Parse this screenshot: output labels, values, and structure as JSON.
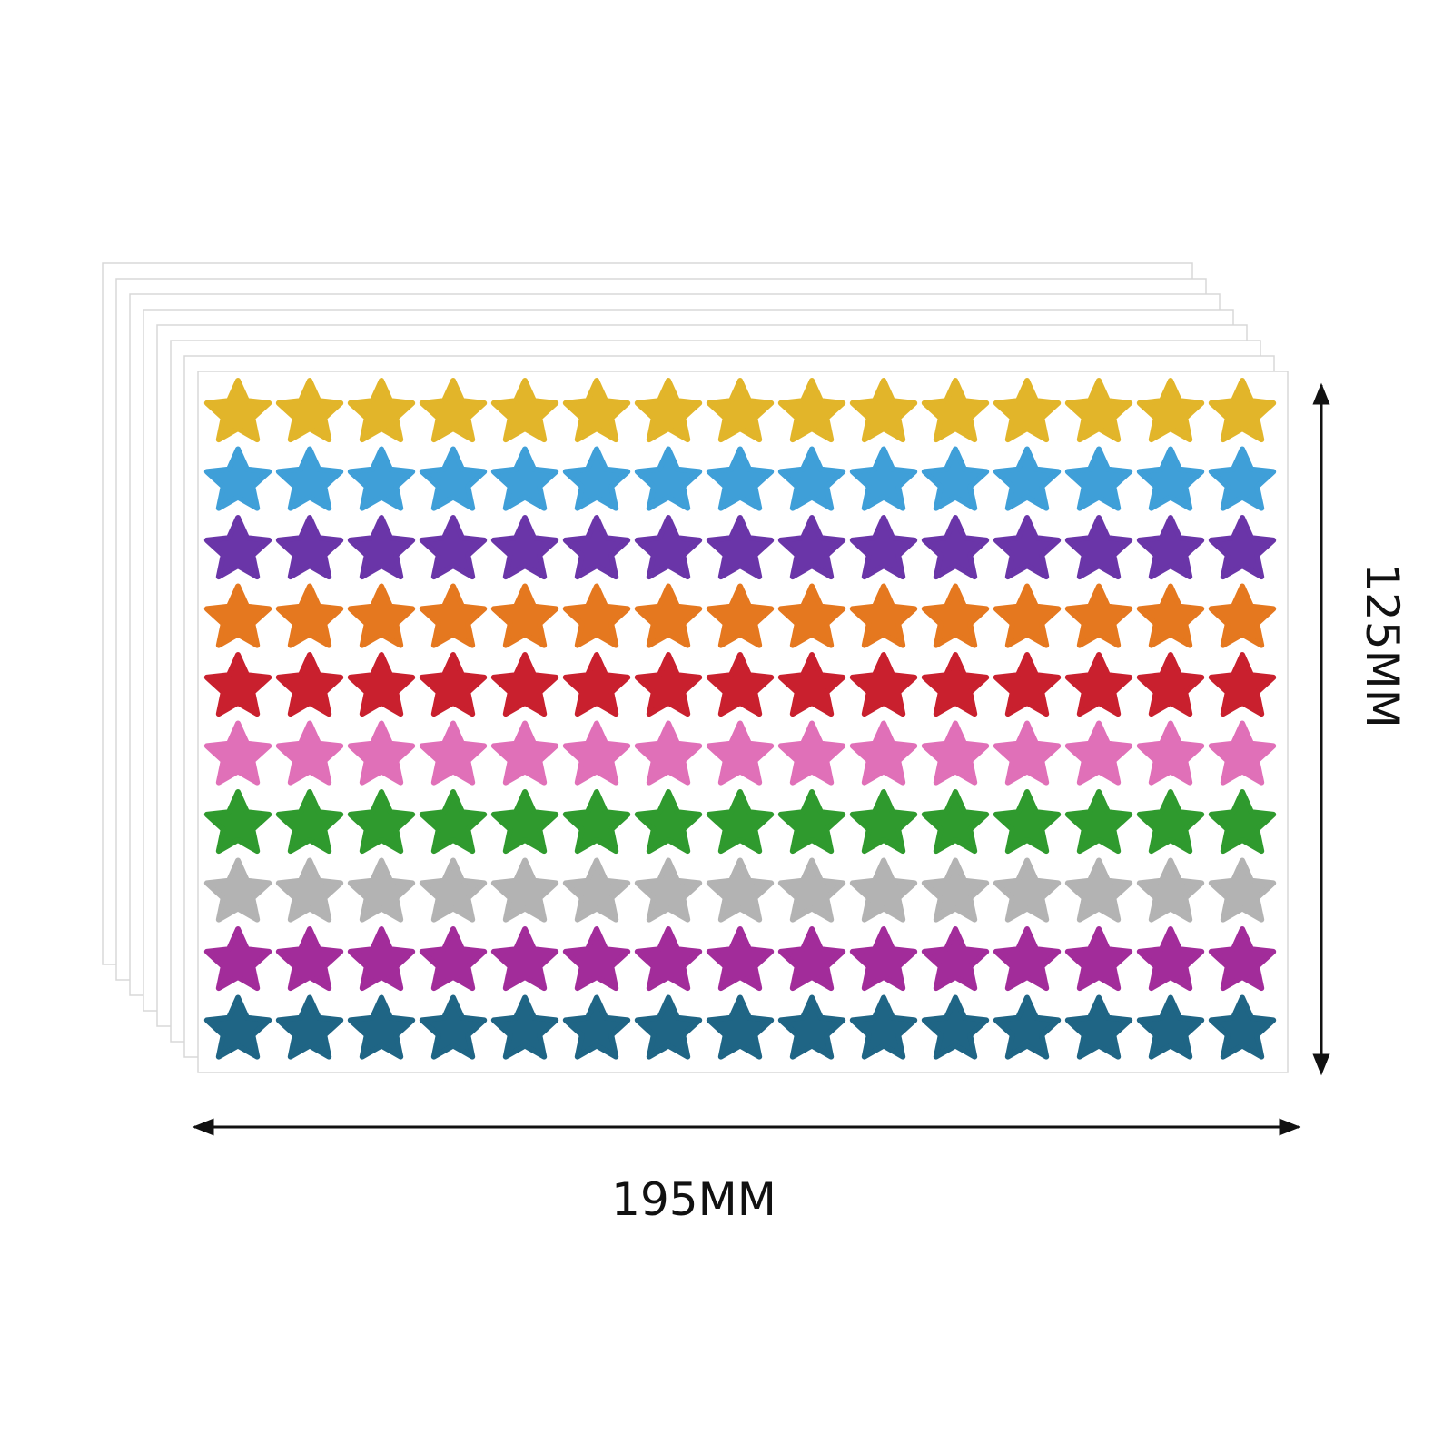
{
  "dimensions": {
    "height": "125MM",
    "width": "195MM"
  }
}
